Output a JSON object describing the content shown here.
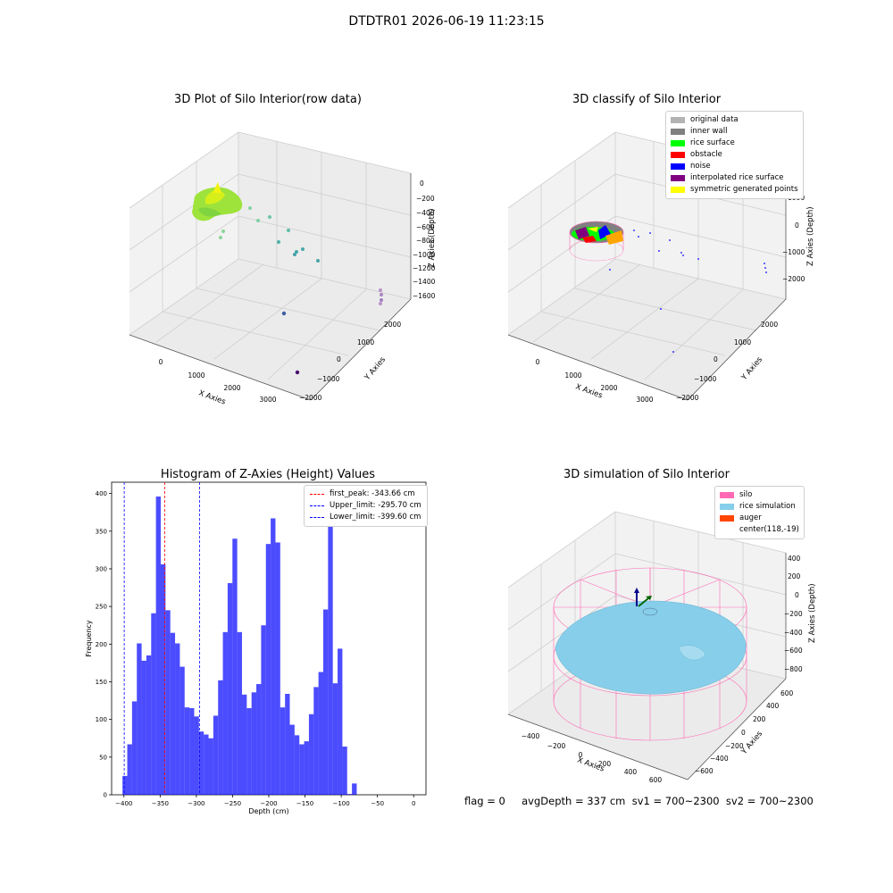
{
  "suptitle": "DTDTR01 2026-06-19 11:23:15",
  "panels": {
    "raw": {
      "title": "3D Plot of Silo Interior(row data)",
      "xlabel": "X Axies",
      "ylabel": "Y Axies",
      "zlabel": "Z Axies (Depth)",
      "xticks": [
        "0",
        "1000",
        "2000",
        "3000"
      ],
      "yticks": [
        "2000",
        "1000",
        "0",
        "−1000",
        "−2000"
      ],
      "zticks": [
        "0",
        "−200",
        "−400",
        "−600",
        "−800",
        "−1000",
        "−1200",
        "−1400",
        "−1600"
      ]
    },
    "classify": {
      "title": "3D classify of Silo Interior",
      "xlabel": "X Axies",
      "ylabel": "Y Axies",
      "zlabel": "Z Axies (Depth)",
      "xticks": [
        "0",
        "1000",
        "2000",
        "3000"
      ],
      "yticks": [
        "2000",
        "1000",
        "0",
        "−1000",
        "−2000"
      ],
      "zticks": [
        "1000",
        "0",
        "−1000",
        "−2000"
      ],
      "legend": [
        {
          "label": "original data",
          "color": "#b3b3b3"
        },
        {
          "label": "inner wall",
          "color": "#808080"
        },
        {
          "label": "rice surface",
          "color": "#00ff00"
        },
        {
          "label": "obstacle",
          "color": "#ff0000"
        },
        {
          "label": "noise",
          "color": "#0000ff"
        },
        {
          "label": "interpolated rice surface",
          "color": "#800080"
        },
        {
          "label": "symmetric generated points",
          "color": "#ffff00"
        }
      ]
    },
    "simulation": {
      "title": "3D simulation of Silo Interior",
      "xlabel": "X Axies",
      "ylabel": "Y Axies",
      "zlabel": "Z Axies (Depth)",
      "xticks": [
        "−400",
        "−200",
        "0",
        "200",
        "400",
        "600"
      ],
      "yticks": [
        "600",
        "400",
        "200",
        "0",
        "−200",
        "−400",
        "−600"
      ],
      "zticks": [
        "400",
        "200",
        "0",
        "−200",
        "−400",
        "−600",
        "−800"
      ],
      "legend": [
        {
          "label": "silo",
          "color": "#ff69b4"
        },
        {
          "label": "rice simulation",
          "color": "#87ceeb"
        },
        {
          "label": "auger",
          "color": "#ff4500"
        },
        {
          "label": "center(118,-19)",
          "color": ""
        }
      ]
    }
  },
  "chart_data": [
    {
      "type": "bar",
      "title": "Histogram of Z-Axies (Height) Values",
      "xlabel": "Depth (cm)",
      "ylabel": "Frequency",
      "xlim": [
        -417,
        17
      ],
      "ylim": [
        0,
        415
      ],
      "bin_start": -402,
      "bin_width": 6.6,
      "values": [
        25,
        67,
        124,
        201,
        178,
        185,
        241,
        396,
        306,
        245,
        215,
        201,
        170,
        116,
        115,
        104,
        84,
        80,
        75,
        105,
        152,
        216,
        281,
        340,
        216,
        133,
        115,
        136,
        147,
        225,
        333,
        367,
        335,
        116,
        134,
        93,
        79,
        67,
        71,
        107,
        143,
        163,
        246,
        359,
        148,
        194,
        64,
        1,
        15
      ],
      "color": "#0000ff",
      "xticks": [
        -400,
        -350,
        -300,
        -250,
        -200,
        -150,
        -100,
        -50,
        0
      ],
      "yticks": [
        0,
        50,
        100,
        150,
        200,
        250,
        300,
        350,
        400
      ],
      "lines": [
        {
          "label": "first_peak: -343.66 cm",
          "x": -343.66,
          "color": "#ff0000"
        },
        {
          "label": "Upper_limit: -295.70 cm",
          "x": -295.7,
          "color": "#0000ff"
        },
        {
          "label": "Lower_limit: -399.60 cm",
          "x": -399.6,
          "color": "#0000ff"
        }
      ]
    }
  ],
  "footer": {
    "text": "flag = 0     avgDepth = 337 cm  sv1 = 700~2300  sv2 = 700~2300"
  }
}
